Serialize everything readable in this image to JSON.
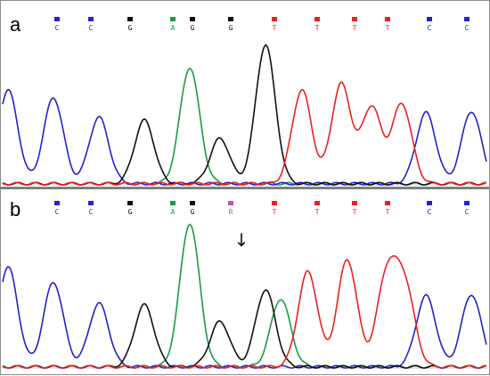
{
  "chart_data": [
    {
      "type": "line",
      "panel_label": "a",
      "base_calls": [
        "C",
        "C",
        "G",
        "A",
        "G",
        "G",
        "T",
        "T",
        "T",
        "T",
        "C",
        "C"
      ],
      "series": [
        {
          "name": "A",
          "color": "#1a9b4b",
          "peaks": [
            {
              "x": 6,
              "h": 0.77
            }
          ]
        },
        {
          "name": "C",
          "color": "#2222cc",
          "peaks": [
            {
              "x": 0,
              "h": 0.62
            },
            {
              "x": 1.5,
              "h": 0.57
            },
            {
              "x": 3,
              "h": 0.44
            },
            {
              "x": 13.8,
              "h": 0.47
            },
            {
              "x": 15.3,
              "h": 0.48
            }
          ]
        },
        {
          "name": "G",
          "color": "#111111",
          "peaks": [
            {
              "x": 4.5,
              "h": 0.42
            },
            {
              "x": 7,
              "h": 0.3
            },
            {
              "x": 8.5,
              "h": 0.92
            }
          ]
        },
        {
          "name": "T",
          "color": "#e8231f",
          "peaks": [
            {
              "x": 9.7,
              "h": 0.62
            },
            {
              "x": 11,
              "h": 0.66
            },
            {
              "x": 12,
              "h": 0.51
            },
            {
              "x": 13,
              "h": 0.53
            }
          ]
        }
      ]
    },
    {
      "type": "line",
      "panel_label": "b",
      "base_calls": [
        "C",
        "C",
        "G",
        "A",
        "G",
        "R",
        "T",
        "T",
        "T",
        "T",
        "C",
        "C"
      ],
      "mutation_arrow": "↓",
      "series": [
        {
          "name": "A",
          "color": "#1a9b4b",
          "peaks": [
            {
              "x": 6,
              "h": 0.95
            },
            {
              "x": 9,
              "h": 0.45
            }
          ]
        },
        {
          "name": "C",
          "color": "#2222cc",
          "peaks": [
            {
              "x": 0,
              "h": 0.66
            },
            {
              "x": 1.5,
              "h": 0.56
            },
            {
              "x": 3,
              "h": 0.42
            },
            {
              "x": 13.8,
              "h": 0.47
            },
            {
              "x": 15.3,
              "h": 0.48
            }
          ]
        },
        {
          "name": "G",
          "color": "#111111",
          "peaks": [
            {
              "x": 4.5,
              "h": 0.41
            },
            {
              "x": 7,
              "h": 0.3
            },
            {
              "x": 8.5,
              "h": 0.51
            }
          ]
        },
        {
          "name": "T",
          "color": "#e8231f",
          "peaks": [
            {
              "x": 9.9,
              "h": 0.63
            },
            {
              "x": 11.2,
              "h": 0.71
            },
            {
              "x": 12.5,
              "h": 0.59
            },
            {
              "x": 13.1,
              "h": 0.52
            }
          ]
        }
      ]
    }
  ],
  "base_colors": {
    "A": "#1a9b4b",
    "C": "#2222cc",
    "G": "#111111",
    "T": "#e8231f",
    "R": "#c050c0"
  }
}
